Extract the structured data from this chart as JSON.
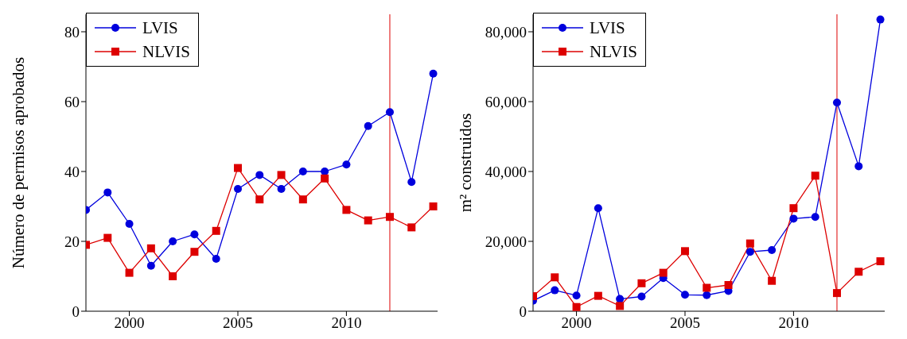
{
  "chart_data": [
    {
      "type": "line",
      "ylabel": "Número de permisos aprobados",
      "x": [
        1998,
        1999,
        2000,
        2001,
        2002,
        2003,
        2004,
        2005,
        2006,
        2007,
        2008,
        2009,
        2010,
        2011,
        2012,
        2013,
        2014
      ],
      "xlim": [
        1998,
        2014.2
      ],
      "xticks": [
        2000,
        2005,
        2010
      ],
      "ylim": [
        0,
        85
      ],
      "yticks": [
        0,
        20,
        40,
        60,
        80
      ],
      "grid": false,
      "legend": "top left",
      "series": [
        {
          "name": "LVIS",
          "color": "#0000dd",
          "marker": "circle",
          "values": [
            29,
            34,
            25,
            13,
            20,
            22,
            15,
            35,
            39,
            35,
            40,
            40,
            42,
            53,
            57,
            37,
            68
          ]
        },
        {
          "name": "NLVIS",
          "color": "#dd0000",
          "marker": "square",
          "values": [
            19,
            21,
            11,
            18,
            10,
            17,
            23,
            41,
            32,
            39,
            32,
            38,
            29,
            26,
            27,
            24,
            30
          ]
        }
      ],
      "ref_lines": [
        {
          "axis": "x",
          "value": 2012,
          "color": "#dd0000"
        }
      ]
    },
    {
      "type": "line",
      "ylabel": "m² construidos",
      "x": [
        1998,
        1999,
        2000,
        2001,
        2002,
        2003,
        2004,
        2005,
        2006,
        2007,
        2008,
        2009,
        2010,
        2011,
        2012,
        2013,
        2014
      ],
      "xlim": [
        1998,
        2014.2
      ],
      "xticks": [
        2000,
        2005,
        2010
      ],
      "ylim": [
        0,
        85000
      ],
      "yticks": [
        0,
        {
          "value": 20000,
          "label": "20,000"
        },
        {
          "value": 40000,
          "label": "40,000"
        },
        {
          "value": 60000,
          "label": "60,000"
        },
        {
          "value": 80000,
          "label": "80,000"
        }
      ],
      "grid": false,
      "legend": "top left",
      "series": [
        {
          "name": "LVIS",
          "color": "#0000dd",
          "marker": "circle",
          "values": [
            3000,
            6000,
            4500,
            29500,
            3500,
            4200,
            9500,
            4700,
            4600,
            5800,
            17000,
            17500,
            26500,
            27000,
            59700,
            41500,
            83500
          ]
        },
        {
          "name": "NLVIS",
          "color": "#dd0000",
          "marker": "square",
          "values": [
            4300,
            9700,
            1200,
            4400,
            1500,
            8000,
            11000,
            17200,
            6700,
            7500,
            19400,
            8700,
            29500,
            38800,
            5200,
            11300,
            14300
          ]
        }
      ],
      "ref_lines": [
        {
          "axis": "x",
          "value": 2012,
          "color": "#dd0000"
        }
      ]
    }
  ]
}
